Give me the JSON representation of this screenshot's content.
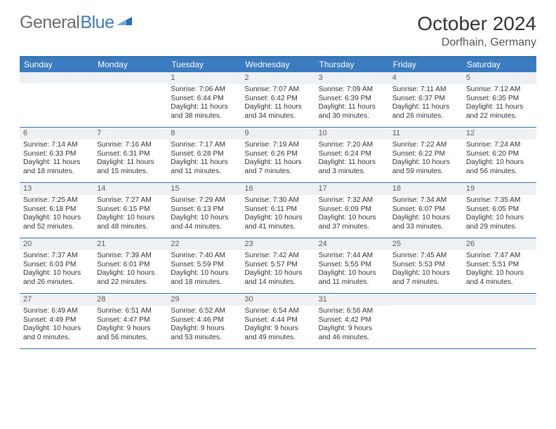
{
  "brand": {
    "part1": "General",
    "part2": "Blue"
  },
  "title": "October 2024",
  "location": "Dorfhain, Germany",
  "colors": {
    "header_bg": "#3b7bbf",
    "border": "#2f6fae",
    "daynum_bg": "#eef1f4",
    "text": "#333333"
  },
  "dow": [
    "Sunday",
    "Monday",
    "Tuesday",
    "Wednesday",
    "Thursday",
    "Friday",
    "Saturday"
  ],
  "weeks": [
    [
      {
        "n": "",
        "lines": []
      },
      {
        "n": "",
        "lines": []
      },
      {
        "n": "1",
        "lines": [
          "Sunrise: 7:06 AM",
          "Sunset: 6:44 PM",
          "Daylight: 11 hours",
          "and 38 minutes."
        ]
      },
      {
        "n": "2",
        "lines": [
          "Sunrise: 7:07 AM",
          "Sunset: 6:42 PM",
          "Daylight: 11 hours",
          "and 34 minutes."
        ]
      },
      {
        "n": "3",
        "lines": [
          "Sunrise: 7:09 AM",
          "Sunset: 6:39 PM",
          "Daylight: 11 hours",
          "and 30 minutes."
        ]
      },
      {
        "n": "4",
        "lines": [
          "Sunrise: 7:11 AM",
          "Sunset: 6:37 PM",
          "Daylight: 11 hours",
          "and 26 minutes."
        ]
      },
      {
        "n": "5",
        "lines": [
          "Sunrise: 7:12 AM",
          "Sunset: 6:35 PM",
          "Daylight: 11 hours",
          "and 22 minutes."
        ]
      }
    ],
    [
      {
        "n": "6",
        "lines": [
          "Sunrise: 7:14 AM",
          "Sunset: 6:33 PM",
          "Daylight: 11 hours",
          "and 18 minutes."
        ]
      },
      {
        "n": "7",
        "lines": [
          "Sunrise: 7:16 AM",
          "Sunset: 6:31 PM",
          "Daylight: 11 hours",
          "and 15 minutes."
        ]
      },
      {
        "n": "8",
        "lines": [
          "Sunrise: 7:17 AM",
          "Sunset: 6:28 PM",
          "Daylight: 11 hours",
          "and 11 minutes."
        ]
      },
      {
        "n": "9",
        "lines": [
          "Sunrise: 7:19 AM",
          "Sunset: 6:26 PM",
          "Daylight: 11 hours",
          "and 7 minutes."
        ]
      },
      {
        "n": "10",
        "lines": [
          "Sunrise: 7:20 AM",
          "Sunset: 6:24 PM",
          "Daylight: 11 hours",
          "and 3 minutes."
        ]
      },
      {
        "n": "11",
        "lines": [
          "Sunrise: 7:22 AM",
          "Sunset: 6:22 PM",
          "Daylight: 10 hours",
          "and 59 minutes."
        ]
      },
      {
        "n": "12",
        "lines": [
          "Sunrise: 7:24 AM",
          "Sunset: 6:20 PM",
          "Daylight: 10 hours",
          "and 56 minutes."
        ]
      }
    ],
    [
      {
        "n": "13",
        "lines": [
          "Sunrise: 7:25 AM",
          "Sunset: 6:18 PM",
          "Daylight: 10 hours",
          "and 52 minutes."
        ]
      },
      {
        "n": "14",
        "lines": [
          "Sunrise: 7:27 AM",
          "Sunset: 6:15 PM",
          "Daylight: 10 hours",
          "and 48 minutes."
        ]
      },
      {
        "n": "15",
        "lines": [
          "Sunrise: 7:29 AM",
          "Sunset: 6:13 PM",
          "Daylight: 10 hours",
          "and 44 minutes."
        ]
      },
      {
        "n": "16",
        "lines": [
          "Sunrise: 7:30 AM",
          "Sunset: 6:11 PM",
          "Daylight: 10 hours",
          "and 41 minutes."
        ]
      },
      {
        "n": "17",
        "lines": [
          "Sunrise: 7:32 AM",
          "Sunset: 6:09 PM",
          "Daylight: 10 hours",
          "and 37 minutes."
        ]
      },
      {
        "n": "18",
        "lines": [
          "Sunrise: 7:34 AM",
          "Sunset: 6:07 PM",
          "Daylight: 10 hours",
          "and 33 minutes."
        ]
      },
      {
        "n": "19",
        "lines": [
          "Sunrise: 7:35 AM",
          "Sunset: 6:05 PM",
          "Daylight: 10 hours",
          "and 29 minutes."
        ]
      }
    ],
    [
      {
        "n": "20",
        "lines": [
          "Sunrise: 7:37 AM",
          "Sunset: 6:03 PM",
          "Daylight: 10 hours",
          "and 26 minutes."
        ]
      },
      {
        "n": "21",
        "lines": [
          "Sunrise: 7:39 AM",
          "Sunset: 6:01 PM",
          "Daylight: 10 hours",
          "and 22 minutes."
        ]
      },
      {
        "n": "22",
        "lines": [
          "Sunrise: 7:40 AM",
          "Sunset: 5:59 PM",
          "Daylight: 10 hours",
          "and 18 minutes."
        ]
      },
      {
        "n": "23",
        "lines": [
          "Sunrise: 7:42 AM",
          "Sunset: 5:57 PM",
          "Daylight: 10 hours",
          "and 14 minutes."
        ]
      },
      {
        "n": "24",
        "lines": [
          "Sunrise: 7:44 AM",
          "Sunset: 5:55 PM",
          "Daylight: 10 hours",
          "and 11 minutes."
        ]
      },
      {
        "n": "25",
        "lines": [
          "Sunrise: 7:45 AM",
          "Sunset: 5:53 PM",
          "Daylight: 10 hours",
          "and 7 minutes."
        ]
      },
      {
        "n": "26",
        "lines": [
          "Sunrise: 7:47 AM",
          "Sunset: 5:51 PM",
          "Daylight: 10 hours",
          "and 4 minutes."
        ]
      }
    ],
    [
      {
        "n": "27",
        "lines": [
          "Sunrise: 6:49 AM",
          "Sunset: 4:49 PM",
          "Daylight: 10 hours",
          "and 0 minutes."
        ]
      },
      {
        "n": "28",
        "lines": [
          "Sunrise: 6:51 AM",
          "Sunset: 4:47 PM",
          "Daylight: 9 hours",
          "and 56 minutes."
        ]
      },
      {
        "n": "29",
        "lines": [
          "Sunrise: 6:52 AM",
          "Sunset: 4:46 PM",
          "Daylight: 9 hours",
          "and 53 minutes."
        ]
      },
      {
        "n": "30",
        "lines": [
          "Sunrise: 6:54 AM",
          "Sunset: 4:44 PM",
          "Daylight: 9 hours",
          "and 49 minutes."
        ]
      },
      {
        "n": "31",
        "lines": [
          "Sunrise: 6:56 AM",
          "Sunset: 4:42 PM",
          "Daylight: 9 hours",
          "and 46 minutes."
        ]
      },
      {
        "n": "",
        "lines": []
      },
      {
        "n": "",
        "lines": []
      }
    ]
  ]
}
